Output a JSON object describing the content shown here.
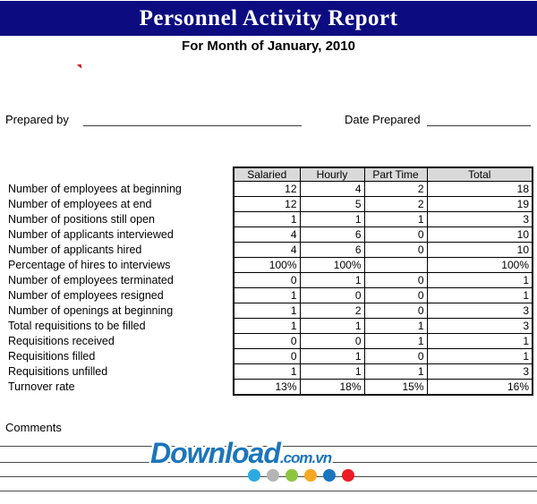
{
  "banner": {
    "title": "Personnel Activity Report",
    "bg_color": "#0c0c80",
    "text_color": "#ffffff"
  },
  "subtitle": "For Month of January, 2010",
  "form": {
    "prepared_by_label": "Prepared by",
    "date_prepared_label": "Date Prepared"
  },
  "table": {
    "header_bg_color": "#d9d9d9",
    "columns": [
      "Salaried",
      "Hourly",
      "Part Time",
      "Total"
    ],
    "rows": [
      {
        "label": "Number of employees at beginning",
        "values": [
          "12",
          "4",
          "2",
          "18"
        ]
      },
      {
        "label": "Number of employees at end",
        "values": [
          "12",
          "5",
          "2",
          "19"
        ]
      },
      {
        "label": "Number of positions still open",
        "values": [
          "1",
          "1",
          "1",
          "3"
        ]
      },
      {
        "label": "Number of applicants interviewed",
        "values": [
          "4",
          "6",
          "0",
          "10"
        ]
      },
      {
        "label": "Number of applicants hired",
        "values": [
          "4",
          "6",
          "0",
          "10"
        ]
      },
      {
        "label": "Percentage of hires to interviews",
        "values": [
          "100%",
          "100%",
          "",
          "100%"
        ]
      },
      {
        "label": "Number of employees terminated",
        "values": [
          "0",
          "1",
          "0",
          "1"
        ]
      },
      {
        "label": "Number of employees resigned",
        "values": [
          "1",
          "0",
          "0",
          "1"
        ]
      },
      {
        "label": "Number of openings at beginning",
        "values": [
          "1",
          "2",
          "0",
          "3"
        ]
      },
      {
        "label": "Total requisitions to be filled",
        "values": [
          "1",
          "1",
          "1",
          "3"
        ]
      },
      {
        "label": "Requisitions received",
        "values": [
          "0",
          "0",
          "1",
          "1"
        ]
      },
      {
        "label": "Requisitions filled",
        "values": [
          "0",
          "1",
          "0",
          "1"
        ]
      },
      {
        "label": "Requisitions unfilled",
        "values": [
          "1",
          "1",
          "1",
          "3"
        ]
      },
      {
        "label": "Turnover rate",
        "values": [
          "13%",
          "18%",
          "15%",
          "16%"
        ]
      }
    ]
  },
  "comments_label": "Comments",
  "watermark": {
    "name": "Download",
    "suffix": ".com.vn",
    "text_color": "#1b75bc",
    "dot_colors": [
      "#29abe2",
      "#b5b5b5",
      "#8cc63f",
      "#f7a823",
      "#1b75bc",
      "#ed1c24"
    ]
  }
}
